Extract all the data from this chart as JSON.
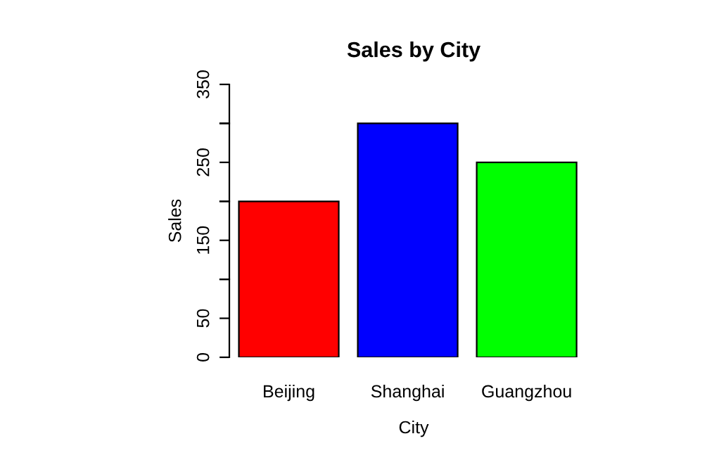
{
  "chart_data": {
    "type": "bar",
    "title": "Sales by City",
    "xlabel": "City",
    "ylabel": "Sales",
    "categories": [
      "Beijing",
      "Shanghai",
      "Guangzhou"
    ],
    "values": [
      200,
      300,
      250
    ],
    "colors": [
      "#ff0000",
      "#0000ff",
      "#00ff00"
    ],
    "ylim": [
      0,
      350
    ],
    "yticks": [
      0,
      50,
      {
        "value": 100,
        "label": null
      },
      150,
      {
        "value": 200,
        "label": null
      },
      250,
      {
        "value": 300,
        "label": null
      },
      350
    ],
    "grid": false
  }
}
